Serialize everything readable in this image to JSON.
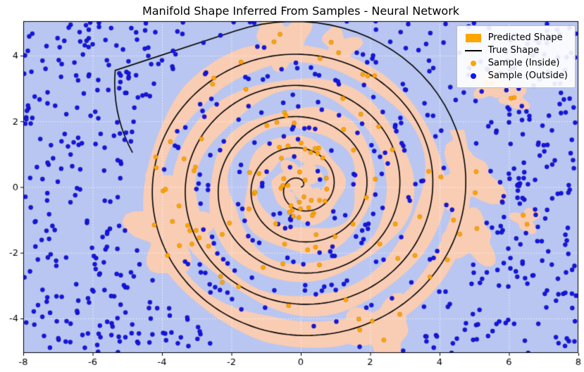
{
  "title": "Manifold Shape Inferred From Samples - Neural Network",
  "legend": {
    "items": [
      {
        "label": "Predicted Shape",
        "marker": "patch",
        "color": "#ffa500"
      },
      {
        "label": "True Shape",
        "marker": "line",
        "color": "#000000"
      },
      {
        "label": "Sample (Inside)",
        "marker": "dot",
        "color": "#ffa500"
      },
      {
        "label": "Sample (Outside)",
        "marker": "dot",
        "color": "#1515e8"
      }
    ],
    "position": "upper right"
  },
  "colors": {
    "region_outside": "#b9c6f1",
    "region_inside": "#f9cdb4",
    "true_shape": "#000000",
    "sample_inside": "#ffa500",
    "sample_outside": "#1515e8",
    "grid": "rgba(255,255,255,0.85)",
    "axes": "#000000"
  },
  "chart_data": {
    "type": "scatter",
    "subtype": "decision_regions_with_true_boundary",
    "title": "Manifold Shape Inferred From Samples - Neural Network",
    "xlabel": "",
    "ylabel": "",
    "xlim": [
      -8,
      8
    ],
    "ylim": [
      -5.05,
      5.05
    ],
    "xticks": [
      -8,
      -6,
      -4,
      -2,
      0,
      2,
      4,
      6,
      8
    ],
    "yticks": [
      -4,
      -2,
      0,
      2,
      4
    ],
    "grid": true,
    "legend_position": "upper right",
    "true_shape_spiral": {
      "form": "archimedean r = a*theta",
      "a": 0.1513,
      "theta_start": 0,
      "theta_end": 31.8,
      "turns": 5,
      "ring_spacing": 0.95,
      "tail": {
        "arc_delta_r": 0.3,
        "arc_end_angle": 1.95,
        "chord_to": [
          -5.35,
          3.55
        ],
        "hook_ctrl": [
          -5.45,
          2.2
        ],
        "hook_to": [
          -4.85,
          1.05
        ]
      }
    },
    "predicted_band": {
      "halfwidth": 0.3,
      "width_wobble_amp": 0.09,
      "radial_wobble_amp": 0.06
    },
    "predicted_patches": [
      {
        "x": -3.8,
        "y": -1.5,
        "r": 1.0
      },
      {
        "x": -3.9,
        "y": -0.1,
        "r": 0.55
      },
      {
        "x": 4.75,
        "y": 0.2,
        "r": 0.9
      },
      {
        "x": 4.9,
        "y": -1.6,
        "r": 0.7
      },
      {
        "x": 2.3,
        "y": -4.35,
        "r": 0.9
      },
      {
        "x": -0.5,
        "y": 4.5,
        "r": 0.7
      },
      {
        "x": 1.1,
        "y": 4.3,
        "r": 0.5
      },
      {
        "x": 5.55,
        "y": 3.1,
        "r": 0.45
      },
      {
        "x": 6.2,
        "y": 2.7,
        "r": 0.35
      },
      {
        "x": 6.5,
        "y": -1.0,
        "r": 0.35
      },
      {
        "x": 0.0,
        "y": 0.3,
        "r": 0.5
      },
      {
        "x": 0.25,
        "y": -0.25,
        "r": 0.35
      }
    ],
    "samples": {
      "seed": 42,
      "outside": {
        "count": 700,
        "distribution": "uniform over plot area",
        "min_dist_from_spiral": 0.26
      },
      "inside": {
        "count": 100,
        "placement": "along spiral band",
        "radial_jitter": 0.5,
        "per_patch": 2
      }
    }
  }
}
